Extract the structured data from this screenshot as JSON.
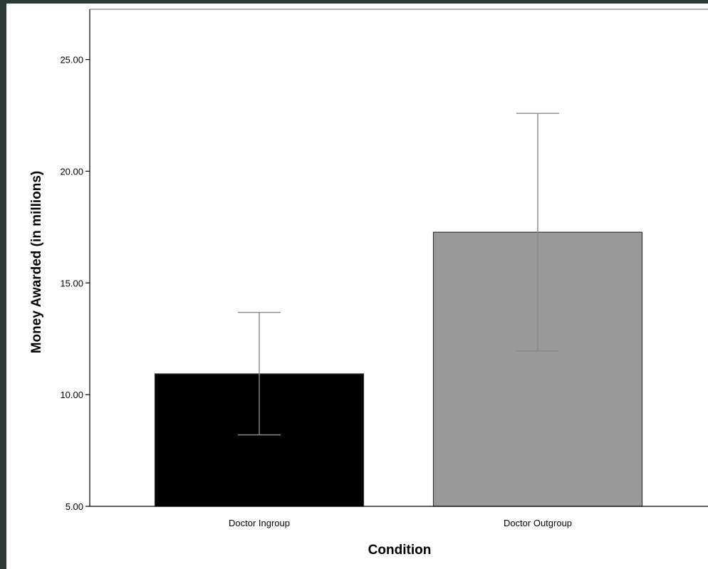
{
  "chart_data": {
    "type": "bar",
    "categories": [
      "Doctor Ingroup",
      "Doctor Outgroup"
    ],
    "values": [
      10.93,
      17.27
    ],
    "error_bars": [
      {
        "low": 8.2,
        "high": 13.68
      },
      {
        "low": 11.95,
        "high": 22.59
      }
    ],
    "bar_colors": [
      "#000000",
      "#999999"
    ],
    "xlabel": "Condition",
    "ylabel": "Money Awarded (in millions)",
    "ylim": [
      5,
      27.25
    ],
    "yticks": [
      "5.00",
      "10.00",
      "15.00",
      "20.00",
      "25.00"
    ],
    "grid": false,
    "legend": "none"
  }
}
